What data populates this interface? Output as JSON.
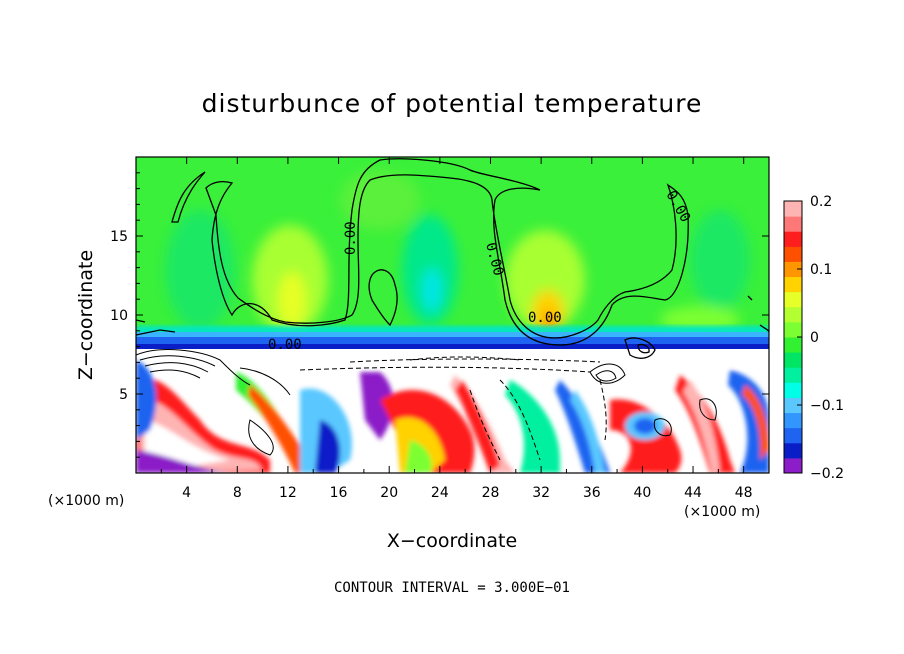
{
  "chart_data": {
    "type": "heatmap",
    "title": "disturbunce of potential temperature",
    "xlabel": "X−coordinate",
    "ylabel": "Z−coordinate",
    "x_unit": "(×1000 m)",
    "z_unit": "(×1000 m)",
    "xlim": [
      0,
      50
    ],
    "ylim": [
      0,
      20
    ],
    "x_ticks": [
      4,
      8,
      12,
      16,
      20,
      24,
      28,
      32,
      36,
      40,
      44,
      48
    ],
    "y_ticks": [
      5,
      10,
      15
    ],
    "colorbar": {
      "min": -0.2,
      "max": 0.2,
      "ticks": [
        0.2,
        0.1,
        0,
        -0.1,
        -0.2
      ],
      "tick_labels": [
        "0.2",
        "0.1",
        "0",
        "−0.1",
        "−0.2"
      ],
      "colors": [
        "#8b1ec8",
        "#0a1ec8",
        "#1e64f0",
        "#3296ff",
        "#5ac8ff",
        "#00ffe6",
        "#00f0a0",
        "#00e664",
        "#32f032",
        "#7cff32",
        "#b4ff32",
        "#e6ff28",
        "#ffd200",
        "#ff9600",
        "#ff5000",
        "#ff1e1e",
        "#ff7878",
        "#ffb4b4"
      ]
    },
    "contour_labels": [
      "0.00",
      "0.00",
      "0.00",
      "0.00",
      "0.00"
    ],
    "contour_interval": "CONTOUR INTERVAL = 3.000E−01"
  }
}
